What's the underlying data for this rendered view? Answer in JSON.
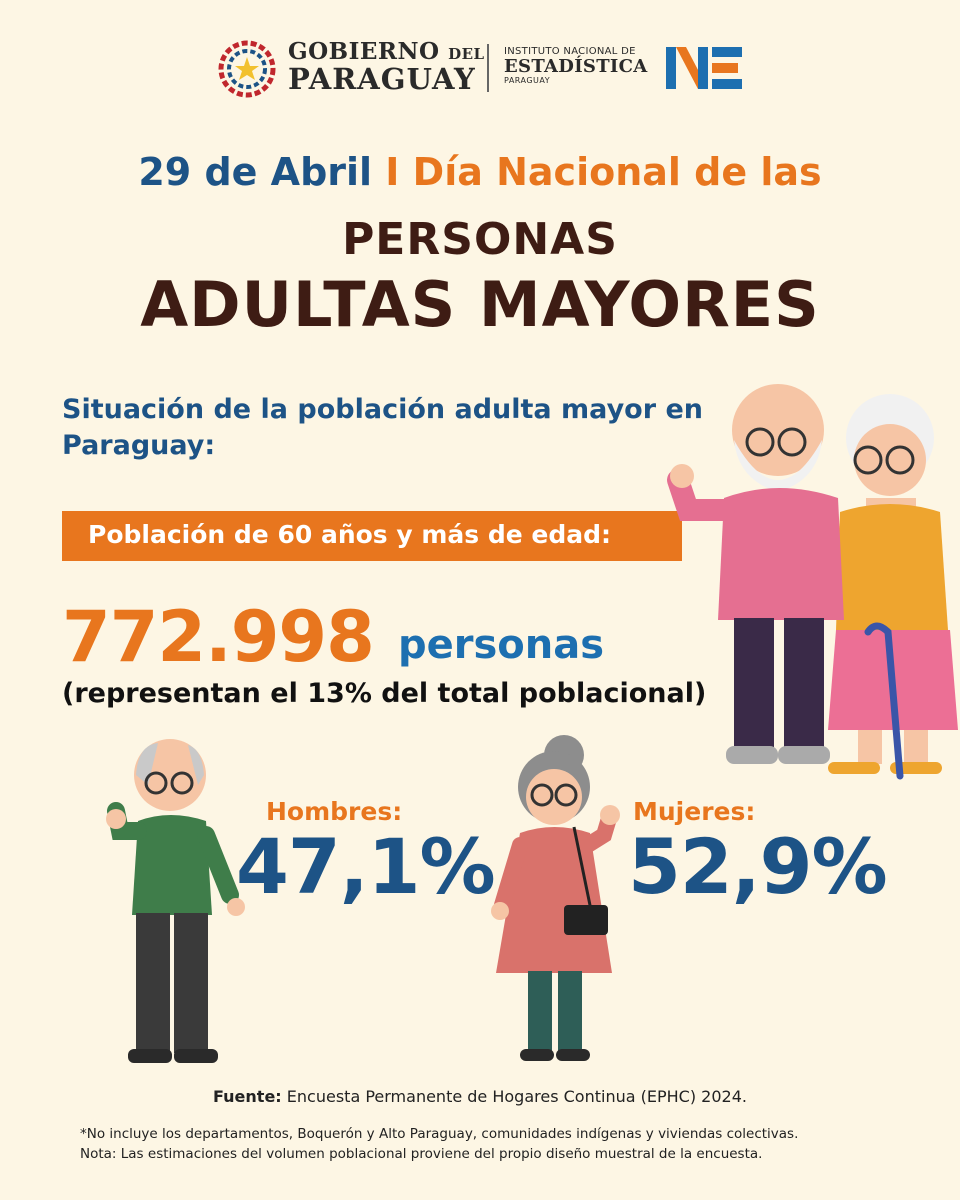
{
  "header": {
    "gobierno_line1": "GOBIERNO",
    "gobierno_del": "DEL",
    "gobierno_line2": "PARAGUAY",
    "ine_line1": "INSTITUTO NACIONAL DE",
    "ine_line2": "ESTADÍSTICA",
    "ine_line3": "PARAGUAY",
    "ine_logo_text": "INE"
  },
  "title": {
    "date": "29 de Abril",
    "separator": "I",
    "day": "Día Nacional de las",
    "line1": "PERSONAS",
    "line2": "ADULTAS MAYORES"
  },
  "situacion": "Situación de la población adulta mayor en Paraguay:",
  "poblacion_label": "Población de 60 años y más de edad:",
  "total": {
    "value": "772.998",
    "unit": "personas",
    "note": "(representan el 13% del total poblacional)"
  },
  "hombres": {
    "label": "Hombres:",
    "value": "47,1%"
  },
  "mujeres": {
    "label": "Mujeres:",
    "value": "52,9%"
  },
  "footer": {
    "fuente_label": "Fuente:",
    "fuente_text": "Encuesta Permanente de Hogares Continua (EPHC) 2024.",
    "nota1": "*No incluye los departamentos, Boquerón y Alto Paraguay, comunidades indígenas y viviendas colectivas.",
    "nota2": "Nota: Las estimaciones del volumen poblacional proviene del propio diseño muestral de la encuesta."
  },
  "colors": {
    "background": "#fdf6e4",
    "blue": "#1d5386",
    "orange": "#e8761e",
    "brown": "#3e1c14"
  }
}
